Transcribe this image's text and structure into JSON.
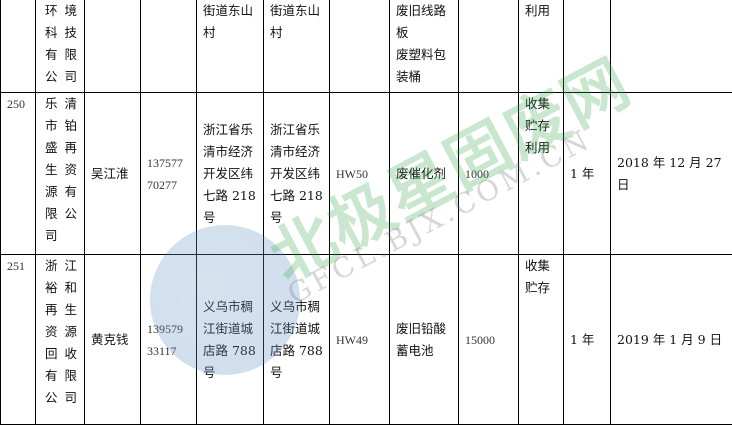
{
  "watermark": {
    "brand_cn": "北极星固废网",
    "brand_en": "GFCL.BJX.COM.CN",
    "color": "#3caa50"
  },
  "rows": [
    {
      "no": "",
      "company": [
        "环境",
        "科技",
        "有限",
        "公司"
      ],
      "contact": "",
      "phone": [],
      "address1": [
        "街道东山",
        "村"
      ],
      "address2": [
        "街道东山",
        "村"
      ],
      "code": "",
      "waste": [
        "废旧线路",
        "板",
        "废塑料包",
        "装桶"
      ],
      "amount": "",
      "method": [
        "利用"
      ],
      "period": "",
      "date": ""
    },
    {
      "no": "250",
      "company": [
        "乐清",
        "市铂",
        "盛再",
        "生资",
        "源有",
        "限公",
        "司"
      ],
      "contact": "吴江淮",
      "phone": [
        "137577",
        "70277"
      ],
      "address1": [
        "浙江省乐",
        "清市经济",
        "开发区纬",
        "七路 218",
        "号"
      ],
      "address2": [
        "浙江省乐",
        "清市经济",
        "开发区纬",
        "七路 218",
        "号"
      ],
      "code": "HW50",
      "waste": [
        "废催化剂"
      ],
      "amount": "1000",
      "method": [
        "收集",
        "贮存",
        "利用"
      ],
      "period": "1 年",
      "date": "2018 年 12 月 27 日"
    },
    {
      "no": "251",
      "company": [
        "浙江",
        "裕和",
        "再生",
        "资源",
        "回收",
        "有限",
        "公司"
      ],
      "contact": "黄克钱",
      "phone": [
        "139579",
        "33117"
      ],
      "address1": [
        "义乌市稠",
        "江街道城",
        "店路 788",
        "号"
      ],
      "address2": [
        "义乌市稠",
        "江街道城",
        "店路 788",
        "号"
      ],
      "code": "HW49",
      "waste": [
        "废旧铅酸",
        "蓄电池"
      ],
      "amount": "15000",
      "method": [
        "收集",
        "贮存"
      ],
      "period": "1 年",
      "date": "2019 年 1 月 9 日"
    }
  ]
}
